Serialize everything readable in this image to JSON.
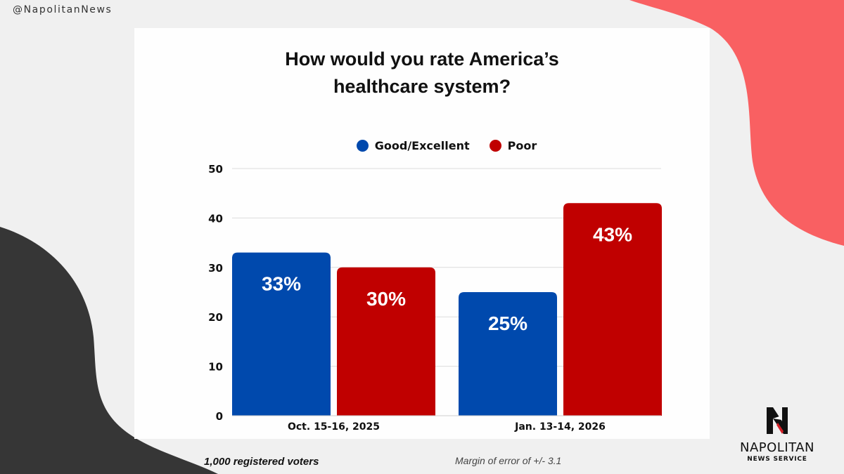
{
  "handle": "@NapolitanNews",
  "colors": {
    "good": "#0049ad",
    "poor": "#c00000",
    "accent_shape": "#f96062",
    "dark_shape": "#363636",
    "background": "#f0f0f0"
  },
  "chart_data": {
    "type": "bar",
    "title": "How would you rate America’s healthcare system?",
    "title_lines": [
      "How would you rate America’s",
      "healthcare system?"
    ],
    "categories": [
      "Oct. 15-16, 2025",
      "Jan. 13-14, 2026"
    ],
    "series": [
      {
        "name": "Good/Excellent",
        "values": [
          33,
          25
        ],
        "labels": [
          "33%",
          "25%"
        ],
        "color": "#0049ad"
      },
      {
        "name": "Poor",
        "values": [
          30,
          43
        ],
        "labels": [
          "30%",
          "43%"
        ],
        "color": "#c00000"
      }
    ],
    "xlabel": "",
    "ylabel": "",
    "ylim": [
      0,
      50
    ],
    "yticks": [
      0,
      10,
      20,
      30,
      40,
      50
    ],
    "grid": true,
    "legend_position": "top-center"
  },
  "footer": {
    "sample": "1,000 registered voters",
    "margin": "Margin of error of +/- 3.1"
  },
  "logo": {
    "letter": "N",
    "name": "NAPOLITAN",
    "subtitle": "NEWS SERVICE"
  }
}
